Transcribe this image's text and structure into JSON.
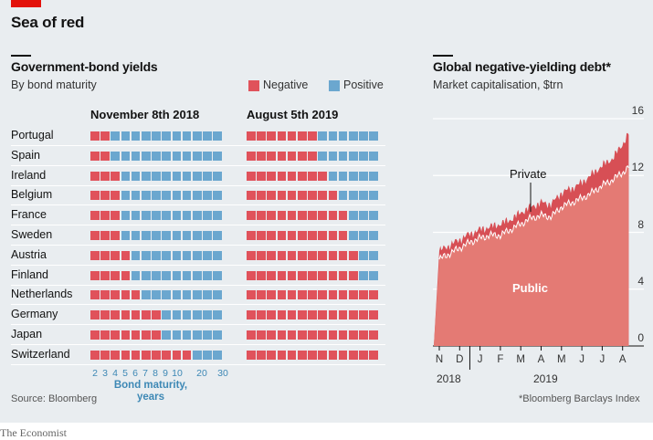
{
  "header": {
    "title": "Sea of red"
  },
  "colors": {
    "negative": "#e0525b",
    "positive": "#6ba7cf",
    "area_public": "#e47a74",
    "area_private": "#d74f55",
    "grid": "#ffffff",
    "accent": "#e3120b"
  },
  "chart_data": [
    {
      "type": "heatmap",
      "title": "Government-bond yields",
      "subtitle": "By bond maturity",
      "legend": [
        {
          "name": "Negative",
          "color": "#e0525b"
        },
        {
          "name": "Positive",
          "color": "#6ba7cf"
        }
      ],
      "xlabel": "Bond maturity, years",
      "maturity_ticks": [
        "2",
        "3",
        "4",
        "5",
        "6",
        "7",
        "8",
        "9",
        "10",
        "20",
        "30"
      ],
      "panels": [
        {
          "date": "November 8th 2018",
          "negative_counts": {
            "Portugal": 2,
            "Spain": 2,
            "Ireland": 3,
            "Belgium": 3,
            "France": 3,
            "Sweden": 3,
            "Austria": 4,
            "Finland": 4,
            "Netherlands": 5,
            "Germany": 7,
            "Japan": 7,
            "Switzerland": 10
          }
        },
        {
          "date": "August 5th 2019",
          "negative_counts": {
            "Portugal": 7,
            "Spain": 7,
            "Ireland": 8,
            "Belgium": 9,
            "France": 10,
            "Sweden": 10,
            "Austria": 11,
            "Finland": 11,
            "Netherlands": 13,
            "Germany": 13,
            "Japan": 13,
            "Switzerland": 13
          }
        }
      ],
      "countries": [
        "Portugal",
        "Spain",
        "Ireland",
        "Belgium",
        "France",
        "Sweden",
        "Austria",
        "Finland",
        "Netherlands",
        "Germany",
        "Japan",
        "Switzerland"
      ],
      "cells_per_row": 13
    },
    {
      "type": "area",
      "title": "Global negative-yielding debt*",
      "subtitle": "Market capitalisation, $trn",
      "ylim": [
        0,
        16
      ],
      "yticks": [
        0,
        4,
        8,
        12,
        16
      ],
      "xticks": [
        "N",
        "D",
        "J",
        "F",
        "M",
        "A",
        "M",
        "J",
        "J",
        "A"
      ],
      "year_labels": [
        "2018",
        "2019"
      ],
      "annotations": {
        "private": "Private",
        "public": "Public"
      },
      "footnote": "*Bloomberg Barclays Index",
      "series": [
        {
          "name": "Public",
          "t": [
            0,
            0.5,
            1,
            1.5,
            2,
            2.5,
            3,
            3.5,
            4,
            4.5,
            5,
            5.5,
            6,
            6.5,
            7,
            7.5,
            8,
            8.5,
            9,
            9.3
          ],
          "values": [
            6.1,
            6.5,
            6.9,
            7.3,
            7.6,
            7.8,
            7.8,
            8.2,
            8.6,
            9.0,
            9.2,
            9.1,
            9.8,
            10.1,
            10.4,
            10.8,
            11.3,
            11.7,
            12.2,
            12.6
          ]
        },
        {
          "name": "Private",
          "t": [
            0,
            0.5,
            1,
            1.5,
            2,
            2.5,
            3,
            3.5,
            4,
            4.5,
            5,
            5.5,
            6,
            6.5,
            7,
            7.5,
            8,
            8.5,
            9,
            9.3
          ],
          "values": [
            0.6,
            0.6,
            0.6,
            0.6,
            0.6,
            0.6,
            0.8,
            0.7,
            0.8,
            0.8,
            0.9,
            0.9,
            1.0,
            1.0,
            1.1,
            1.3,
            1.4,
            1.5,
            2.0,
            2.4
          ]
        }
      ]
    }
  ],
  "footer": {
    "source": "Source: Bloomberg",
    "credit": "The Economist"
  }
}
